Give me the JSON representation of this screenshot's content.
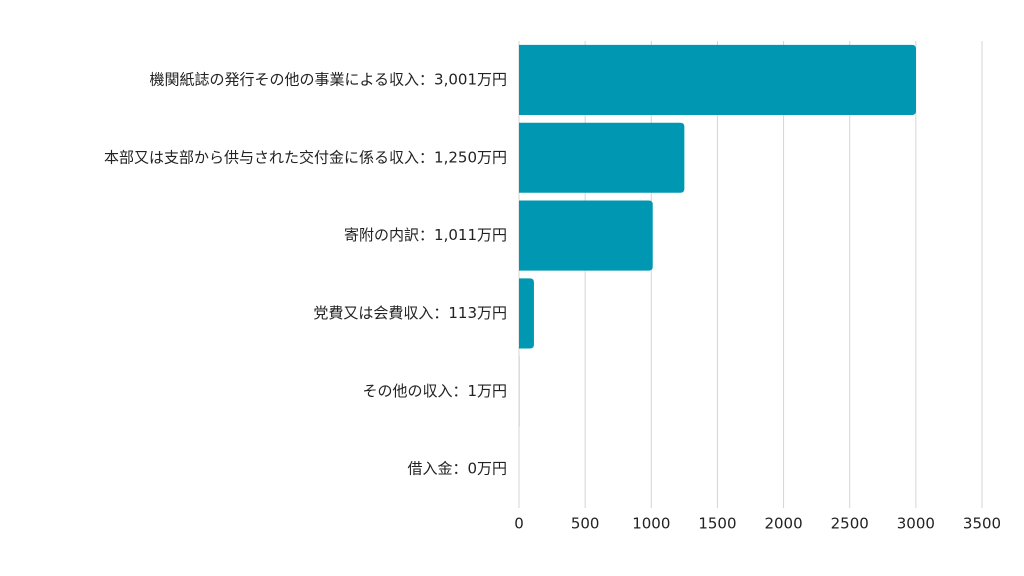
{
  "chart_data": {
    "type": "hbar",
    "categories": [
      "機関紙誌の発行その他の事業による収入：3,001万円",
      "本部又は支部から供与された交付金に係る収入：1,250万円",
      "寄附の内訳：1,011万円",
      "党費又は会費収入：113万円",
      "その他の収入：1万円",
      "借入金：0万円"
    ],
    "values": [
      3001,
      1250,
      1011,
      113,
      1,
      0
    ],
    "color": "#0097b2",
    "xlim": [
      0,
      3500
    ],
    "xticks": [
      0,
      500,
      1000,
      1500,
      2000,
      2500,
      3000,
      3500
    ],
    "grid": true
  }
}
